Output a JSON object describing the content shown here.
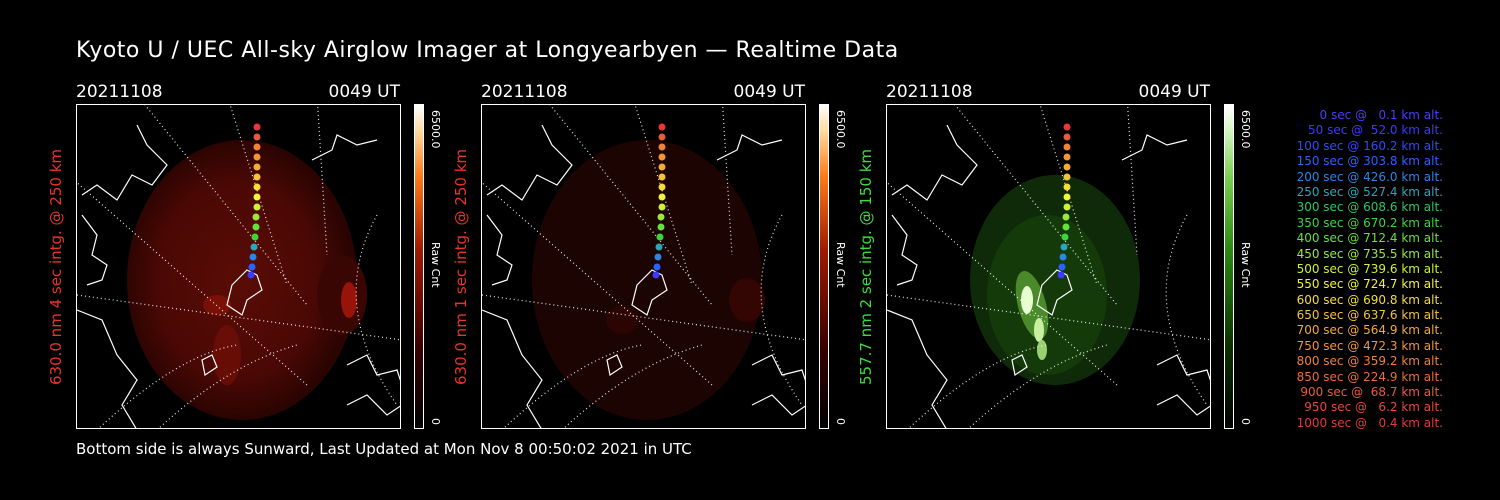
{
  "title": "Kyoto U / UEC All-sky Airglow Imager at Longyearbyen — Realtime Data",
  "footer": "Bottom side is always Sunward, Last Updated at Mon Nov  8 00:50:02 2021 in UTC",
  "panels": [
    {
      "date": "20211108",
      "time": "0049 UT",
      "ylabel": "630.0 nm 4 sec intg. @ 250 km",
      "ylabel_color": "#e8342a",
      "cbar_max": "6500.0",
      "cbar_label": "Raw Cnt",
      "cbar_min": "0",
      "colormap": "red"
    },
    {
      "date": "20211108",
      "time": "0049 UT",
      "ylabel": "630.0 nm 1 sec intg. @ 250 km",
      "ylabel_color": "#e8342a",
      "cbar_max": "6500.0",
      "cbar_label": "Raw Cnt",
      "cbar_min": "0",
      "colormap": "red"
    },
    {
      "date": "20211108",
      "time": "0049 UT",
      "ylabel": "557.7 nm 2 sec intg. @ 150 km",
      "ylabel_color": "#3ddc3d",
      "cbar_max": "6500.0",
      "cbar_label": "Raw Cnt",
      "cbar_min": "0",
      "colormap": "green"
    }
  ],
  "legend": [
    {
      "text": "0 sec @   0.1 km alt.",
      "color": "#4b3cff"
    },
    {
      "text": "50 sec @  52.0 km alt.",
      "color": "#3b3bff"
    },
    {
      "text": "100 sec @ 160.2 km alt.",
      "color": "#2f4bff"
    },
    {
      "text": "150 sec @ 303.8 km alt.",
      "color": "#2a62ff"
    },
    {
      "text": "200 sec @ 426.0 km alt.",
      "color": "#2a86e6"
    },
    {
      "text": "250 sec @ 527.4 km alt.",
      "color": "#2aa6b8"
    },
    {
      "text": "300 sec @ 608.6 km alt.",
      "color": "#2ec46a"
    },
    {
      "text": "350 sec @ 670.2 km alt.",
      "color": "#3cd43c"
    },
    {
      "text": "400 sec @ 712.4 km alt.",
      "color": "#66e03a"
    },
    {
      "text": "450 sec @ 735.5 km alt.",
      "color": "#9ae83a"
    },
    {
      "text": "500 sec @ 739.6 km alt.",
      "color": "#cdf03a"
    },
    {
      "text": "550 sec @ 724.7 km alt.",
      "color": "#f2f23a"
    },
    {
      "text": "600 sec @ 690.8 km alt.",
      "color": "#f6dc3a"
    },
    {
      "text": "650 sec @ 637.6 km alt.",
      "color": "#f4c23a"
    },
    {
      "text": "700 sec @ 564.9 km alt.",
      "color": "#f2aa3a"
    },
    {
      "text": "750 sec @ 472.3 km alt.",
      "color": "#f0963a"
    },
    {
      "text": "800 sec @ 359.2 km alt.",
      "color": "#ee823a"
    },
    {
      "text": "850 sec @ 224.9 km alt.",
      "color": "#ec6c3a"
    },
    {
      "text": "900 sec @  68.7 km alt.",
      "color": "#ea5a3a"
    },
    {
      "text": "950 sec @   6.2 km alt.",
      "color": "#e8483a"
    },
    {
      "text": "1000 sec @   0.4 km alt.",
      "color": "#e6383a"
    }
  ]
}
